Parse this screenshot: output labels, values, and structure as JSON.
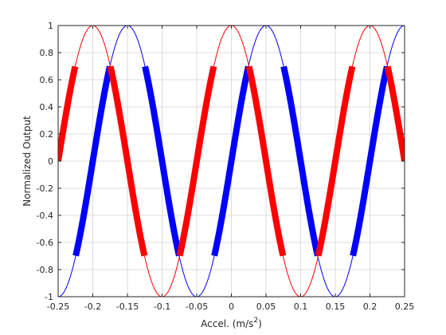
{
  "chart_data": {
    "type": "line",
    "title": "",
    "xlabel_text": "Accel. (m/s",
    "xlabel_sup": "2",
    "xlabel_close": ")",
    "ylabel": "Normalized Output",
    "xlim": [
      -0.25,
      0.25
    ],
    "ylim": [
      -1,
      1
    ],
    "grid": true,
    "x_ticks": [
      -0.25,
      -0.2,
      -0.15,
      -0.1,
      -0.05,
      0,
      0.05,
      0.1,
      0.15,
      0.2,
      0.25
    ],
    "x_tick_labels": [
      "-0.25",
      "-0.2",
      "-0.15",
      "-0.1",
      "-0.05",
      "0",
      "0.05",
      "0.1",
      "0.15",
      "0.2",
      "0.25"
    ],
    "y_ticks": [
      -1,
      -0.8,
      -0.6,
      -0.4,
      -0.2,
      0,
      0.2,
      0.4,
      0.6,
      0.8,
      1
    ],
    "y_tick_labels": [
      "-1",
      "-0.8",
      "-0.6",
      "-0.4",
      "-0.2",
      "0",
      "0.2",
      "0.4",
      "0.6",
      "0.8",
      "1"
    ],
    "series": [
      {
        "style": "thin",
        "color": "#0000ff",
        "function": "sin",
        "period": 0.2,
        "phase_x": 0.0,
        "amplitude": 1,
        "clip_y": null
      },
      {
        "style": "thin",
        "color": "#ff0000",
        "function": "cos",
        "period": 0.2,
        "phase_x": 0.0,
        "amplitude": 1,
        "clip_y": null
      },
      {
        "style": "thick",
        "color": "#0000ff",
        "function": "sin",
        "period": 0.2,
        "phase_x": 0.0,
        "amplitude": 1,
        "clip_y": [
          -0.7,
          0.7
        ]
      },
      {
        "style": "thick",
        "color": "#ff0000",
        "function": "cos",
        "period": 0.2,
        "phase_x": 0.0,
        "amplitude": 1,
        "clip_y": [
          -0.7,
          0.7
        ]
      }
    ]
  }
}
